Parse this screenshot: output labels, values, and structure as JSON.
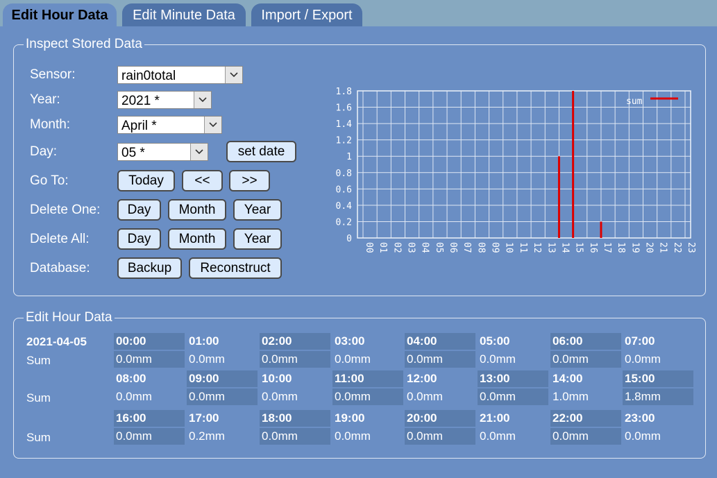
{
  "tabs": [
    {
      "label": "Edit Hour Data"
    },
    {
      "label": "Edit Minute Data"
    },
    {
      "label": "Import / Export"
    }
  ],
  "inspect": {
    "legend": "Inspect Stored Data",
    "sensor_label": "Sensor:",
    "sensor_value": "rain0total",
    "year_label": "Year:",
    "year_value": "2021 *",
    "month_label": "Month:",
    "month_value": "April *",
    "day_label": "Day:",
    "day_value": "05 *",
    "set_date": "set date",
    "goto_label": "Go To:",
    "today": "Today",
    "prev": "<<",
    "next": ">>",
    "delete_one_label": "Delete One:",
    "delete_all_label": "Delete All:",
    "day_btn": "Day",
    "month_btn": "Month",
    "year_btn": "Year",
    "database_label": "Database:",
    "backup": "Backup",
    "reconstruct": "Reconstruct"
  },
  "chart_data": {
    "type": "bar",
    "categories": [
      "00",
      "01",
      "02",
      "03",
      "04",
      "05",
      "06",
      "07",
      "08",
      "09",
      "10",
      "11",
      "12",
      "13",
      "14",
      "15",
      "16",
      "17",
      "18",
      "19",
      "20",
      "21",
      "22",
      "23"
    ],
    "series": [
      {
        "name": "sum",
        "values": [
          0,
          0,
          0,
          0,
          0,
          0,
          0,
          0,
          0,
          0,
          0,
          0,
          0,
          0,
          1.0,
          1.8,
          0,
          0.2,
          0,
          0,
          0,
          0,
          0,
          0
        ],
        "color": "#dd0000"
      }
    ],
    "yticks": [
      "0",
      "0.2",
      "0.4",
      "0.6",
      "0.8",
      "1",
      "1.2",
      "1.4",
      "1.6",
      "1.8"
    ],
    "ylim": [
      0,
      1.8
    ],
    "grid": true,
    "legend": "top-right"
  },
  "edit": {
    "legend": "Edit Hour Data",
    "date": "2021-04-05",
    "sum_label": "Sum",
    "rows": [
      {
        "hours": [
          "00:00",
          "01:00",
          "02:00",
          "03:00",
          "04:00",
          "05:00",
          "06:00",
          "07:00"
        ],
        "sums": [
          "0.0mm",
          "0.0mm",
          "0.0mm",
          "0.0mm",
          "0.0mm",
          "0.0mm",
          "0.0mm",
          "0.0mm"
        ]
      },
      {
        "hours": [
          "08:00",
          "09:00",
          "10:00",
          "11:00",
          "12:00",
          "13:00",
          "14:00",
          "15:00"
        ],
        "sums": [
          "0.0mm",
          "0.0mm",
          "0.0mm",
          "0.0mm",
          "0.0mm",
          "0.0mm",
          "1.0mm",
          "1.8mm"
        ]
      },
      {
        "hours": [
          "16:00",
          "17:00",
          "18:00",
          "19:00",
          "20:00",
          "21:00",
          "22:00",
          "23:00"
        ],
        "sums": [
          "0.0mm",
          "0.2mm",
          "0.0mm",
          "0.0mm",
          "0.0mm",
          "0.0mm",
          "0.0mm",
          "0.0mm"
        ]
      }
    ]
  }
}
